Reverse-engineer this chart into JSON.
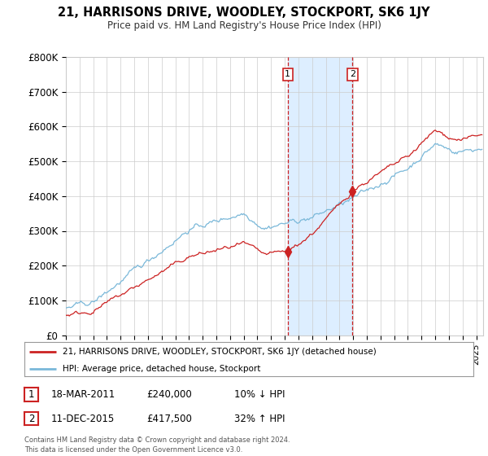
{
  "title": "21, HARRISONS DRIVE, WOODLEY, STOCKPORT, SK6 1JY",
  "subtitle": "Price paid vs. HM Land Registry's House Price Index (HPI)",
  "ylabel_ticks": [
    "£0",
    "£100K",
    "£200K",
    "£300K",
    "£400K",
    "£500K",
    "£600K",
    "£700K",
    "£800K"
  ],
  "ytick_values": [
    0,
    100000,
    200000,
    300000,
    400000,
    500000,
    600000,
    700000,
    800000
  ],
  "ylim": [
    0,
    800000
  ],
  "hpi_color": "#7ab8d9",
  "price_color": "#cc2222",
  "transaction1": {
    "date": "18-MAR-2011",
    "price": 240000,
    "label": "1",
    "hpi_relation": "10% ↓ HPI",
    "x_year": 2011.22
  },
  "transaction2": {
    "date": "11-DEC-2015",
    "price": 417500,
    "label": "2",
    "hpi_relation": "32% ↑ HPI",
    "x_year": 2015.95
  },
  "legend_property": "21, HARRISONS DRIVE, WOODLEY, STOCKPORT, SK6 1JY (detached house)",
  "legend_hpi": "HPI: Average price, detached house, Stockport",
  "footnote": "Contains HM Land Registry data © Crown copyright and database right 2024.\nThis data is licensed under the Open Government Licence v3.0.",
  "xlim_start": 1995.0,
  "xlim_end": 2025.5,
  "background_color": "#ffffff",
  "plot_bg_color": "#ffffff",
  "grid_color": "#cccccc",
  "vline_color": "#cc2222",
  "highlight_color": "#ddeeff"
}
